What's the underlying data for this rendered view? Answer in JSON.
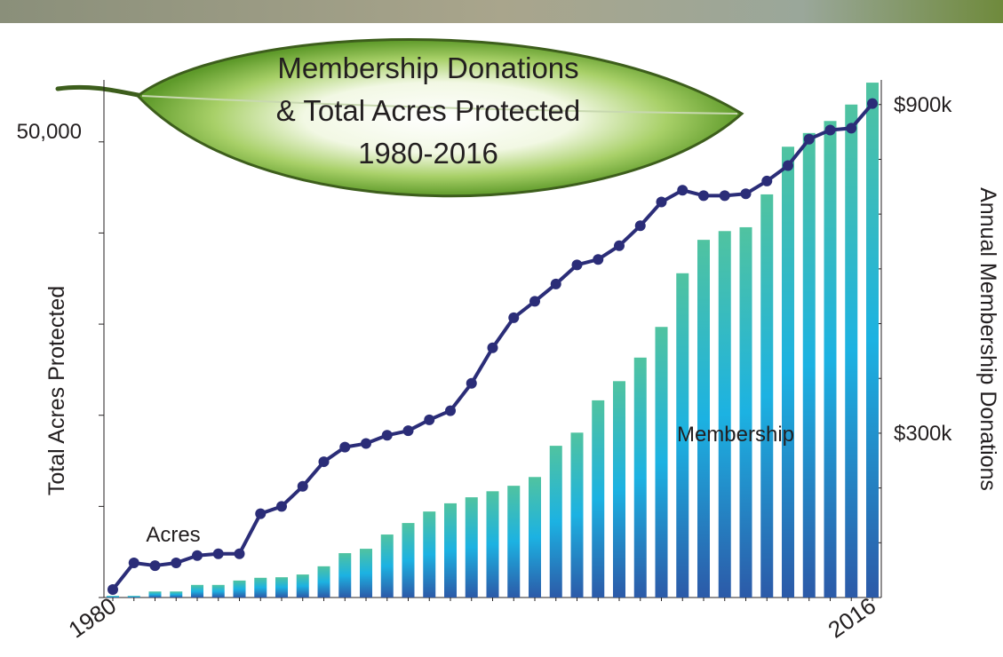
{
  "chart_data": {
    "type": "bar",
    "title": [
      "Membership Donations",
      "& Total Acres Protected",
      "1980-2016"
    ],
    "y_label": "Total Acres Protected",
    "y2_label": "Annual Membership Donations",
    "categories": [
      "1980",
      null,
      null,
      null,
      null,
      null,
      null,
      null,
      null,
      null,
      null,
      null,
      null,
      null,
      null,
      null,
      null,
      null,
      null,
      null,
      null,
      null,
      null,
      null,
      null,
      null,
      null,
      null,
      null,
      null,
      null,
      null,
      null,
      null,
      null,
      null,
      "2016"
    ],
    "ylim": [
      0,
      56800
    ],
    "yticks": [
      {
        "value": 50000,
        "label": "50,000"
      }
    ],
    "yminor_ticks": [
      0,
      10000,
      20000,
      30000,
      40000
    ],
    "y2lim": [
      0,
      945000
    ],
    "y2ticks": [
      {
        "value": 900000,
        "label": "$900k"
      },
      {
        "value": 300000,
        "label": "$300k"
      }
    ],
    "y2minor_ticks": [
      0,
      100000,
      200000,
      400000,
      500000,
      600000,
      700000,
      800000
    ],
    "series": [
      {
        "name": "Membership",
        "type": "bar",
        "axis": "y2",
        "color": [
          "#50c3a0",
          "#1cb2e2",
          "#2c5aa8"
        ],
        "values": [
          3000,
          3000,
          11000,
          11000,
          23000,
          23000,
          31000,
          36000,
          37000,
          42000,
          57000,
          81000,
          89000,
          115000,
          136000,
          157000,
          172000,
          183000,
          194000,
          204000,
          220000,
          277000,
          301000,
          360000,
          395000,
          438000,
          494000,
          592000,
          653000,
          669000,
          676000,
          736000,
          823000,
          848000,
          870000,
          900000,
          940000
        ]
      },
      {
        "name": "Acres",
        "type": "line",
        "axis": "y",
        "color": "#2b2d78",
        "values": [
          880,
          3800,
          3500,
          3800,
          4600,
          4800,
          4800,
          9200,
          10000,
          12200,
          14900,
          16500,
          16900,
          17800,
          18300,
          19500,
          20500,
          23500,
          27400,
          30700,
          32500,
          34400,
          36500,
          37100,
          38600,
          40800,
          43400,
          44700,
          44100,
          44100,
          44300,
          45700,
          47400,
          50300,
          51300,
          51500,
          54200
        ]
      }
    ]
  }
}
